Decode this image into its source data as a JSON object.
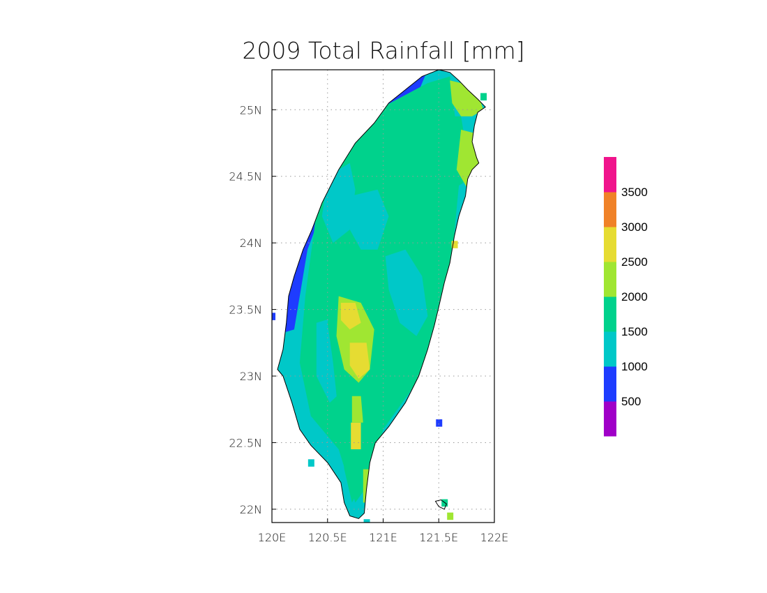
{
  "chart_data": {
    "type": "heatmap",
    "title": "2009 Total Rainfall [mm]",
    "units": "mm",
    "xlim": [
      120,
      122
    ],
    "ylim": [
      21.9,
      25.3
    ],
    "x_ticks": [
      {
        "value": 120,
        "label": "120E"
      },
      {
        "value": 120.5,
        "label": "120.5E"
      },
      {
        "value": 121,
        "label": "121E"
      },
      {
        "value": 121.5,
        "label": "121.5E"
      },
      {
        "value": 122,
        "label": "122E"
      }
    ],
    "y_ticks": [
      {
        "value": 22,
        "label": "22N"
      },
      {
        "value": 22.5,
        "label": "22.5N"
      },
      {
        "value": 23,
        "label": "23N"
      },
      {
        "value": 23.5,
        "label": "23.5N"
      },
      {
        "value": 24,
        "label": "24N"
      },
      {
        "value": 24.5,
        "label": "24.5N"
      },
      {
        "value": 25,
        "label": "25N"
      }
    ],
    "grid": true,
    "colorbar": {
      "placement": "right",
      "levels": [
        {
          "min": 0,
          "max": 500,
          "color": "#a000c8"
        },
        {
          "min": 500,
          "max": 1000,
          "color": "#1e3cff"
        },
        {
          "min": 1000,
          "max": 1500,
          "color": "#00c8c8"
        },
        {
          "min": 1500,
          "max": 2000,
          "color": "#00d28c"
        },
        {
          "min": 2000,
          "max": 2500,
          "color": "#a0e632"
        },
        {
          "min": 2500,
          "max": 3000,
          "color": "#e6dc32"
        },
        {
          "min": 3000,
          "max": 3500,
          "color": "#f08228"
        },
        {
          "min": 3500,
          "max": 4000,
          "color": "#f0148c"
        }
      ],
      "tick_labels": [
        "500",
        "1000",
        "1500",
        "2000",
        "2500",
        "3000",
        "3500"
      ]
    },
    "coastline": [
      [
        121.5,
        25.3
      ],
      [
        121.6,
        25.28
      ],
      [
        121.68,
        25.22
      ],
      [
        121.76,
        25.15
      ],
      [
        121.85,
        25.08
      ],
      [
        121.92,
        25.02
      ],
      [
        121.85,
        24.98
      ],
      [
        121.82,
        24.88
      ],
      [
        121.8,
        24.76
      ],
      [
        121.84,
        24.64
      ],
      [
        121.86,
        24.6
      ],
      [
        121.8,
        24.55
      ],
      [
        121.76,
        24.48
      ],
      [
        121.74,
        24.35
      ],
      [
        121.68,
        24.2
      ],
      [
        121.64,
        24.05
      ],
      [
        121.6,
        23.85
      ],
      [
        121.55,
        23.7
      ],
      [
        121.5,
        23.52
      ],
      [
        121.46,
        23.38
      ],
      [
        121.4,
        23.2
      ],
      [
        121.32,
        23.0
      ],
      [
        121.2,
        22.8
      ],
      [
        121.05,
        22.62
      ],
      [
        120.93,
        22.5
      ],
      [
        120.88,
        22.35
      ],
      [
        120.85,
        22.15
      ],
      [
        120.83,
        21.97
      ],
      [
        120.78,
        21.93
      ],
      [
        120.7,
        21.95
      ],
      [
        120.65,
        22.05
      ],
      [
        120.62,
        22.2
      ],
      [
        120.5,
        22.35
      ],
      [
        120.35,
        22.48
      ],
      [
        120.25,
        22.6
      ],
      [
        120.18,
        22.8
      ],
      [
        120.1,
        23.0
      ],
      [
        120.05,
        23.05
      ],
      [
        120.1,
        23.2
      ],
      [
        120.13,
        23.4
      ],
      [
        120.15,
        23.6
      ],
      [
        120.2,
        23.75
      ],
      [
        120.28,
        23.95
      ],
      [
        120.36,
        24.1
      ],
      [
        120.45,
        24.3
      ],
      [
        120.6,
        24.55
      ],
      [
        120.75,
        24.75
      ],
      [
        120.92,
        24.9
      ],
      [
        121.05,
        25.05
      ],
      [
        121.2,
        25.15
      ],
      [
        121.35,
        25.25
      ],
      [
        121.5,
        25.3
      ]
    ],
    "islands": [
      [
        [
          121.47,
          22.06
        ],
        [
          121.52,
          22.07
        ],
        [
          121.57,
          22.04
        ],
        [
          121.55,
          22.0
        ],
        [
          121.5,
          22.02
        ],
        [
          121.47,
          22.06
        ]
      ]
    ],
    "regions": [
      {
        "level": 3,
        "points": [
          [
            121.6,
            25.22
          ],
          [
            121.7,
            25.2
          ],
          [
            121.86,
            25.1
          ],
          [
            121.9,
            25.0
          ],
          [
            121.8,
            24.95
          ],
          [
            121.7,
            24.95
          ],
          [
            121.62,
            25.05
          ]
        ]
      },
      {
        "level": 2,
        "points": [
          [
            121.55,
            24.95
          ],
          [
            121.7,
            24.95
          ],
          [
            121.75,
            24.7
          ],
          [
            121.72,
            24.45
          ],
          [
            121.62,
            24.4
          ],
          [
            121.57,
            24.6
          ]
        ]
      },
      {
        "level": 3,
        "points": [
          [
            121.7,
            24.85
          ],
          [
            121.84,
            24.82
          ],
          [
            121.86,
            24.55
          ],
          [
            121.75,
            24.42
          ],
          [
            121.66,
            24.55
          ]
        ]
      },
      {
        "level": 1,
        "points": [
          [
            120.5,
            24.5
          ],
          [
            120.7,
            24.6
          ],
          [
            120.75,
            24.4
          ],
          [
            120.7,
            24.1
          ],
          [
            120.55,
            24.0
          ],
          [
            120.45,
            24.2
          ]
        ]
      },
      {
        "level": 1,
        "points": [
          [
            120.7,
            24.35
          ],
          [
            120.95,
            24.4
          ],
          [
            121.05,
            24.2
          ],
          [
            120.95,
            23.95
          ],
          [
            120.8,
            23.95
          ],
          [
            120.7,
            24.1
          ]
        ]
      },
      {
        "level": 1,
        "points": [
          [
            121.02,
            23.9
          ],
          [
            121.2,
            23.95
          ],
          [
            121.35,
            23.75
          ],
          [
            121.4,
            23.45
          ],
          [
            121.3,
            23.3
          ],
          [
            121.15,
            23.4
          ],
          [
            121.05,
            23.65
          ]
        ]
      },
      {
        "level": 2,
        "points": [
          [
            121.45,
            23.95
          ],
          [
            121.6,
            23.9
          ],
          [
            121.58,
            23.55
          ],
          [
            121.52,
            23.3
          ],
          [
            121.42,
            23.4
          ],
          [
            121.4,
            23.7
          ]
        ]
      },
      {
        "level": 1,
        "points": [
          [
            120.4,
            23.4
          ],
          [
            120.6,
            23.45
          ],
          [
            120.7,
            23.25
          ],
          [
            120.65,
            22.9
          ],
          [
            120.52,
            22.8
          ],
          [
            120.4,
            23.0
          ]
        ]
      },
      {
        "level": 2,
        "points": [
          [
            120.55,
            23.62
          ],
          [
            120.8,
            23.6
          ],
          [
            120.95,
            23.35
          ],
          [
            120.95,
            22.95
          ],
          [
            120.85,
            22.7
          ],
          [
            120.82,
            22.2
          ],
          [
            120.72,
            22.05
          ],
          [
            120.65,
            22.3
          ],
          [
            120.6,
            22.7
          ],
          [
            120.55,
            23.1
          ],
          [
            120.5,
            23.4
          ]
        ]
      },
      {
        "level": 3,
        "points": [
          [
            120.6,
            23.6
          ],
          [
            120.8,
            23.55
          ],
          [
            120.92,
            23.35
          ],
          [
            120.88,
            23.05
          ],
          [
            120.78,
            22.95
          ],
          [
            120.65,
            23.05
          ],
          [
            120.58,
            23.3
          ]
        ]
      },
      {
        "level": 4,
        "points": [
          [
            120.62,
            23.55
          ],
          [
            120.75,
            23.55
          ],
          [
            120.8,
            23.4
          ],
          [
            120.7,
            23.35
          ],
          [
            120.62,
            23.42
          ]
        ]
      },
      {
        "level": 4,
        "points": [
          [
            120.7,
            23.25
          ],
          [
            120.85,
            23.25
          ],
          [
            120.88,
            23.05
          ],
          [
            120.78,
            22.98
          ],
          [
            120.7,
            23.08
          ]
        ]
      },
      {
        "level": 4,
        "points": [
          [
            120.71,
            22.65
          ],
          [
            120.8,
            22.65
          ],
          [
            120.8,
            22.45
          ],
          [
            120.71,
            22.45
          ]
        ]
      },
      {
        "level": 3,
        "points": [
          [
            120.72,
            22.85
          ],
          [
            120.8,
            22.85
          ],
          [
            120.82,
            22.65
          ],
          [
            120.72,
            22.65
          ]
        ]
      },
      {
        "level": 3,
        "points": [
          [
            120.82,
            22.3
          ],
          [
            120.88,
            22.3
          ],
          [
            120.88,
            22.05
          ],
          [
            120.82,
            22.05
          ]
        ]
      }
    ],
    "scattered_cells": [
      {
        "lon": 120.0,
        "lat": 23.45,
        "level": 0
      },
      {
        "lon": 121.5,
        "lat": 22.65,
        "level": 0
      },
      {
        "lon": 120.35,
        "lat": 22.35,
        "level": 1
      },
      {
        "lon": 121.6,
        "lat": 21.95,
        "level": 3
      },
      {
        "lon": 121.55,
        "lat": 22.05,
        "level": 2
      },
      {
        "lon": 121.9,
        "lat": 25.1,
        "level": 2
      },
      {
        "lon": 121.64,
        "lat": 23.99,
        "level": 4
      },
      {
        "lon": 120.85,
        "lat": 21.9,
        "level": 1
      }
    ]
  }
}
